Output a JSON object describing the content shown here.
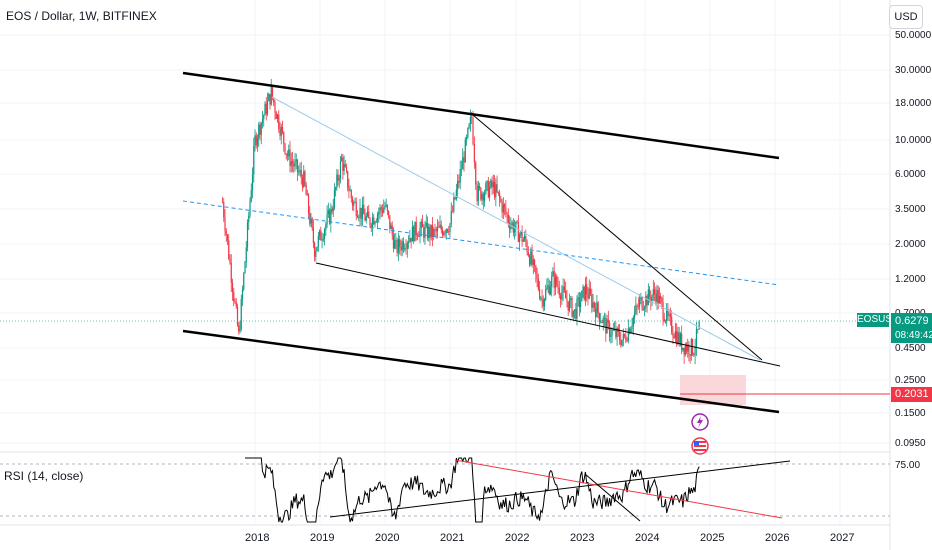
{
  "header": {
    "title": "EOS / Dollar, 1W, BITFINEX",
    "currency_button": "USD"
  },
  "price_labels": {
    "symbol": "EOSUSD",
    "last_price": "0.6279",
    "countdown": "08:49:42",
    "marker_price": "0.2031"
  },
  "indicator": {
    "label": "RSI (14, close)",
    "level_label": "75.00"
  },
  "colors": {
    "up": "#089981",
    "down": "#f23645",
    "trendline": "#000000",
    "dashed_channel": "#2196f3",
    "rsi_trendline_red": "#f23645"
  },
  "icons": [
    "lightning-icon",
    "us-flag-icon"
  ],
  "chart_data": [
    {
      "type": "candlestick",
      "title": "EOS / Dollar, 1W, BITFINEX",
      "y_scale": "log",
      "y_ticks": [
        "50.0000",
        "30.0000",
        "18.0000",
        "10.0000",
        "6.0000",
        "3.5000",
        "2.0000",
        "1.2000",
        "0.7000",
        "0.4500",
        "0.2500",
        "0.1500",
        "0.0950"
      ],
      "x_ticks": [
        "2018",
        "2019",
        "2020",
        "2021",
        "2022",
        "2023",
        "2024",
        "2025",
        "2026",
        "2027"
      ],
      "last_price": 0.6279,
      "approx_closes": [
        [
          "2017-07",
          4.0
        ],
        [
          "2017-10",
          0.55
        ],
        [
          "2018-01",
          10.0
        ],
        [
          "2018-04",
          20.0
        ],
        [
          "2018-07",
          8.0
        ],
        [
          "2018-10",
          5.5
        ],
        [
          "2018-12",
          2.0
        ],
        [
          "2019-03",
          3.4
        ],
        [
          "2019-05",
          7.5
        ],
        [
          "2019-07",
          4.0
        ],
        [
          "2019-10",
          3.0
        ],
        [
          "2020-01",
          3.8
        ],
        [
          "2020-03",
          2.0
        ],
        [
          "2020-07",
          2.7
        ],
        [
          "2020-10",
          2.5
        ],
        [
          "2021-01",
          2.9
        ],
        [
          "2021-05",
          14.0
        ],
        [
          "2021-06",
          4.5
        ],
        [
          "2021-09",
          5.0
        ],
        [
          "2021-12",
          3.0
        ],
        [
          "2022-03",
          2.2
        ],
        [
          "2022-06",
          0.95
        ],
        [
          "2022-08",
          1.3
        ],
        [
          "2022-12",
          0.78
        ],
        [
          "2023-02",
          1.1
        ],
        [
          "2023-06",
          0.62
        ],
        [
          "2023-09",
          0.52
        ],
        [
          "2023-12",
          0.9
        ],
        [
          "2024-03",
          1.05
        ],
        [
          "2024-05",
          0.72
        ],
        [
          "2024-08",
          0.48
        ],
        [
          "2024-10",
          0.46
        ],
        [
          "2024-11",
          0.6279
        ]
      ]
    },
    {
      "type": "line",
      "title": "RSI (14, close)",
      "y_ticks": [
        "75.00"
      ],
      "x_ticks": [
        "2018",
        "2019",
        "2020",
        "2021",
        "2022",
        "2023",
        "2024",
        "2025",
        "2026",
        "2027"
      ]
    }
  ]
}
